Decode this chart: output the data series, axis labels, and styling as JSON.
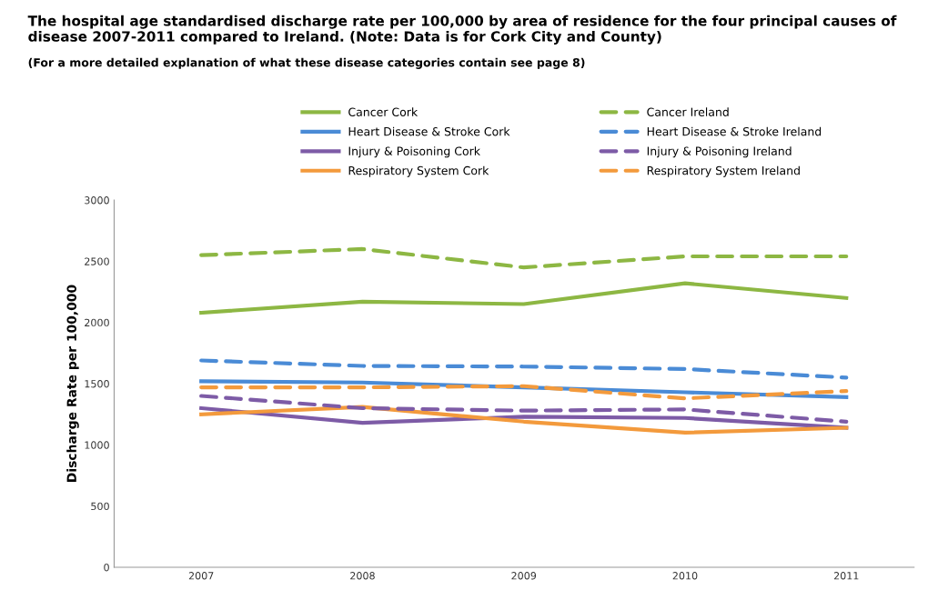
{
  "chart_data": {
    "type": "line",
    "title": "The hospital age standardised discharge rate per 100,000 by area of residence for the four principal causes of disease 2007-2011 compared to Ireland. (Note: Data is for Cork City and County)",
    "subtitle": "(For a more detailed explanation of what these disease categories contain see page 8)",
    "ylabel": "Discharge Rate per 100,000",
    "categories": [
      "2007",
      "2008",
      "2009",
      "2010",
      "2011"
    ],
    "series": [
      {
        "name": "Cancer Cork",
        "color": "#8db743",
        "line_style": "solid",
        "values": [
          2080,
          2170,
          2150,
          2320,
          2200
        ]
      },
      {
        "name": "Heart Disease & Stroke Cork",
        "color": "#4a8bd6",
        "line_style": "solid",
        "values": [
          1520,
          1510,
          1470,
          1430,
          1390
        ]
      },
      {
        "name": "Injury & Poisoning Cork",
        "color": "#7d5ba6",
        "line_style": "solid",
        "values": [
          1300,
          1180,
          1230,
          1220,
          1140
        ]
      },
      {
        "name": "Respiratory System Cork",
        "color": "#f39a3c",
        "line_style": "solid",
        "values": [
          1250,
          1310,
          1190,
          1100,
          1140
        ]
      },
      {
        "name": "Cancer Ireland",
        "color": "#8db743",
        "line_style": "dashed",
        "values": [
          2550,
          2600,
          2450,
          2540,
          2540
        ]
      },
      {
        "name": "Heart Disease & Stroke Ireland",
        "color": "#4a8bd6",
        "line_style": "dashed",
        "values": [
          1690,
          1645,
          1640,
          1620,
          1550
        ]
      },
      {
        "name": "Injury & Poisoning Ireland",
        "color": "#7d5ba6",
        "line_style": "dashed",
        "values": [
          1400,
          1300,
          1280,
          1290,
          1190
        ]
      },
      {
        "name": "Respiratory System Ireland",
        "color": "#f39a3c",
        "line_style": "dashed",
        "values": [
          1470,
          1470,
          1480,
          1380,
          1440
        ]
      }
    ],
    "ylim": [
      0,
      3000
    ],
    "yticks": [
      0,
      500,
      1000,
      1500,
      2000,
      2500,
      3000
    ],
    "grid": false,
    "legend": "top",
    "marker": "none"
  }
}
